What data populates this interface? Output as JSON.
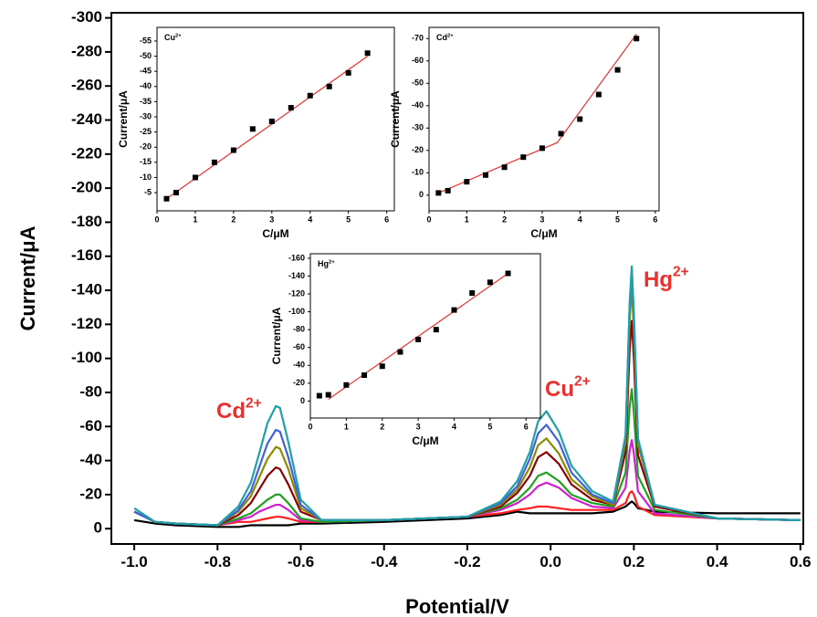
{
  "chart_data": [
    {
      "type": "line",
      "x_label": "Potential/V",
      "y_label": "Current/μA",
      "xlim": [
        -1.055,
        0.607
      ],
      "xticks": [
        {
          "value": -1,
          "label": "-1.0"
        },
        -0.8,
        -0.6,
        -0.4,
        -0.2,
        {
          "value": 0,
          "label": "0.0"
        },
        0.2,
        0.4,
        0.6
      ],
      "ylim": [
        9,
        -303
      ],
      "yticks": [
        0,
        -20,
        -40,
        -60,
        -80,
        -100,
        -120,
        -140,
        -160,
        -180,
        -200,
        -220,
        -240,
        -260,
        -280,
        -300
      ],
      "x": [
        -1.0,
        -0.95,
        -0.9,
        -0.8,
        -0.75,
        -0.72,
        -0.7,
        -0.68,
        -0.66,
        -0.65,
        -0.63,
        -0.6,
        -0.55,
        -0.4,
        -0.2,
        -0.12,
        -0.08,
        -0.05,
        -0.03,
        -0.01,
        0.02,
        0.05,
        0.1,
        0.15,
        0.18,
        0.19,
        0.195,
        0.2,
        0.21,
        0.25,
        0.4,
        0.6
      ],
      "series": [
        {
          "color": "#000000",
          "values": [
            -5,
            -3,
            -2,
            -1,
            -1,
            -2,
            -2,
            -2,
            -2,
            -2,
            -2,
            -3,
            -3,
            -4,
            -6,
            -8,
            -10,
            -9,
            -9,
            -9,
            -9,
            -9,
            -9,
            -10,
            -13,
            -15,
            -16,
            -15,
            -12,
            -10,
            -9,
            -9
          ]
        },
        {
          "color": "#ff2020",
          "values": [
            -10,
            -4,
            -3,
            -2,
            -4,
            -4,
            -5,
            -6,
            -7,
            -7,
            -6,
            -4,
            -4,
            -5,
            -7,
            -9,
            -11,
            -12,
            -13,
            -13,
            -12,
            -11,
            -11,
            -11,
            -15,
            -21,
            -22,
            -20,
            -13,
            -8,
            -6,
            -5
          ]
        },
        {
          "color": "#d020d0",
          "values": [
            -10,
            -4,
            -3,
            -2,
            -5,
            -7,
            -10,
            -12,
            -14,
            -14,
            -11,
            -5,
            -4,
            -5,
            -7,
            -11,
            -15,
            -20,
            -25,
            -27,
            -24,
            -18,
            -13,
            -12,
            -24,
            -46,
            -52,
            -44,
            -22,
            -9,
            -6,
            -5
          ]
        },
        {
          "color": "#20a020",
          "values": [
            -10,
            -4,
            -3,
            -2,
            -6,
            -9,
            -13,
            -17,
            -20,
            -20,
            -15,
            -6,
            -4,
            -5,
            -7,
            -12,
            -17,
            -24,
            -31,
            -33,
            -28,
            -20,
            -15,
            -13,
            -33,
            -72,
            -82,
            -68,
            -31,
            -11,
            -6,
            -5
          ]
        },
        {
          "color": "#8b0000",
          "values": [
            -10,
            -4,
            -3,
            -2,
            -8,
            -15,
            -23,
            -31,
            -36,
            -35,
            -26,
            -10,
            -5,
            -5,
            -7,
            -13,
            -21,
            -31,
            -42,
            -45,
            -38,
            -26,
            -17,
            -14,
            -45,
            -106,
            -122,
            -100,
            -43,
            -13,
            -6,
            -5
          ]
        },
        {
          "color": "#8b8b00",
          "values": [
            -10,
            -4,
            -3,
            -2,
            -10,
            -19,
            -30,
            -41,
            -48,
            -47,
            -35,
            -12,
            -5,
            -5,
            -7,
            -14,
            -23,
            -36,
            -49,
            -53,
            -44,
            -29,
            -19,
            -14,
            -51,
            -123,
            -142,
            -116,
            -49,
            -14,
            -6,
            -5
          ]
        },
        {
          "color": "#4060e0",
          "values": [
            -10,
            -4,
            -3,
            -2,
            -11,
            -22,
            -36,
            -50,
            -58,
            -57,
            -42,
            -14,
            -5,
            -5,
            -7,
            -15,
            -25,
            -41,
            -56,
            -61,
            -51,
            -33,
            -20,
            -15,
            -54,
            -131,
            -152,
            -124,
            -52,
            -14,
            -6,
            -5
          ]
        },
        {
          "color": "#20a0a8",
          "values": [
            -12,
            -4,
            -3,
            -2,
            -13,
            -27,
            -44,
            -62,
            -72,
            -71,
            -51,
            -17,
            -5,
            -5,
            -7,
            -16,
            -28,
            -45,
            -63,
            -69,
            -57,
            -37,
            -22,
            -16,
            -55,
            -133,
            -154,
            -126,
            -53,
            -14,
            -6,
            -5
          ]
        }
      ],
      "annotations": [
        {
          "text": "Cd",
          "sup": "2+"
        },
        {
          "text": "Cu",
          "sup": "2+"
        },
        {
          "text": "Hg",
          "sup": "2+"
        }
      ],
      "annotation_color": "#e8312f"
    },
    {
      "type": "scatter",
      "label": {
        "text": "Cu",
        "sup": "2+"
      },
      "x_label": "C/μM",
      "y_label": "Current/μA",
      "xlim": [
        0,
        6.2
      ],
      "xticks": [
        0,
        1,
        2,
        3,
        4,
        5,
        6
      ],
      "ylim": [
        1,
        -59.5
      ],
      "yticks": [
        -5,
        -10,
        -15,
        -20,
        -25,
        -30,
        -35,
        -40,
        -45,
        -50,
        -55
      ],
      "x": [
        0.25,
        0.5,
        1,
        1.5,
        2,
        2.5,
        3,
        3.5,
        4,
        4.5,
        5,
        5.5
      ],
      "values": [
        -3,
        -5,
        -10,
        -15,
        -19,
        -26,
        -28.5,
        -33,
        -37,
        -40,
        -44.5,
        -51
      ],
      "marker_color": "#000000",
      "fit": {
        "x": [
          0.25,
          5.5
        ],
        "values": [
          -3,
          -50
        ],
        "color": "#e8312f"
      }
    },
    {
      "type": "scatter",
      "label": {
        "text": "Cd",
        "sup": "2+"
      },
      "x_label": "C/μM",
      "y_label": "Current/μA",
      "xlim": [
        0,
        6.1
      ],
      "xticks": [
        0,
        1,
        2,
        3,
        4,
        5,
        6
      ],
      "ylim": [
        7,
        -75
      ],
      "yticks": [
        0,
        -10,
        -20,
        -30,
        -40,
        -50,
        -60,
        -70
      ],
      "x": [
        0.25,
        0.5,
        1,
        1.5,
        2,
        2.5,
        3,
        3.5,
        4,
        4.5,
        5,
        5.5
      ],
      "values": [
        -1,
        -2,
        -6,
        -9,
        -12.5,
        -17,
        -21,
        -27.5,
        -34,
        -45,
        -56,
        -70
      ],
      "marker_color": "#000000",
      "fit": {
        "x": [
          0.25,
          3.4,
          5.5
        ],
        "values": [
          -1,
          -23.5,
          -72
        ],
        "color": "#e8312f"
      }
    },
    {
      "type": "scatter",
      "label": {
        "text": "Hg",
        "sup": "2+"
      },
      "x_label": "C/μM",
      "y_label": "Current/μA",
      "xlim": [
        0,
        6.4
      ],
      "xticks": [
        0,
        1,
        2,
        3,
        4,
        5,
        6
      ],
      "ylim": [
        19,
        -165
      ],
      "yticks": [
        0,
        -20,
        -40,
        -60,
        -80,
        -100,
        -120,
        -140,
        -160
      ],
      "x": [
        0.25,
        0.5,
        1,
        1.5,
        2,
        2.5,
        3,
        3.5,
        4,
        4.5,
        5,
        5.5
      ],
      "values": [
        -6,
        -7,
        -18,
        -29,
        -39,
        -55,
        -69,
        -80,
        -102,
        -121,
        -133,
        -143
      ],
      "marker_color": "#000000",
      "fit": {
        "x": [
          0.5,
          5.5
        ],
        "values": [
          -2,
          -143
        ],
        "color": "#e8312f"
      }
    }
  ]
}
